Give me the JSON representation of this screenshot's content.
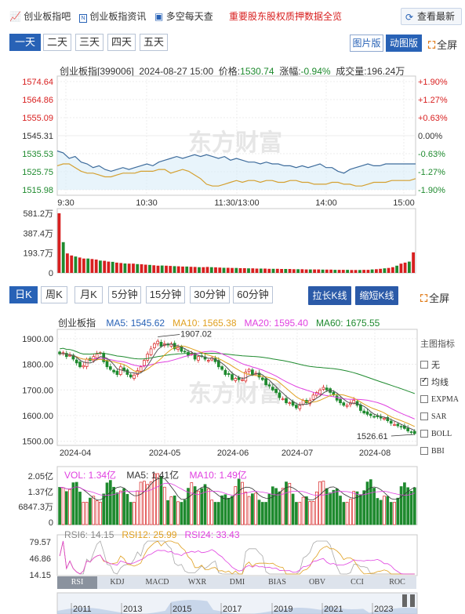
{
  "toplinks": {
    "forum": "创业板指吧",
    "news": "创业板指资讯",
    "contrarian": "多空每天查",
    "pledge": "重要股东股权质押数据全览",
    "refresh": "查看最新"
  },
  "intraday": {
    "tabs": [
      "一天",
      "二天",
      "三天",
      "四天",
      "五天"
    ],
    "view_buttons": [
      "图片版",
      "动图版"
    ],
    "fullscreen": "全屏",
    "info": "创业板指[399006]  2024-08-27 15:00  价格:",
    "price": "1530.74",
    "change_label": "涨幅:",
    "change": "-0.94%",
    "volume_label": "成交量:",
    "volume": "196.24万",
    "watermark": "东方财富"
  },
  "kline": {
    "tabs": [
      "日K",
      "周K",
      "月K",
      "5分钟",
      "15分钟",
      "30分钟",
      "60分钟"
    ],
    "stretch": "拉长K线",
    "shrink": "缩短K线",
    "fullscreen": "全屏",
    "name": "创业板指",
    "ma5": "MA5: 1545.62",
    "ma10": "MA10: 1565.38",
    "ma20": "MA20: 1595.40",
    "ma60": "MA60: 1675.55",
    "high_label": "1907.02",
    "low_label": "1526.61",
    "vol": "VOL: 1.34亿",
    "vma5": "MA5: 1.41亿",
    "vma10": "MA10: 1.49亿",
    "rsi6": "RSI6: 14.15",
    "rsi12": "RSI12: 25.99",
    "rsi24": "RSI24: 33.43",
    "indicator_title": "主图指标",
    "indicator_options": [
      "无",
      "均线",
      "EXPMA",
      "SAR",
      "BOLL",
      "BBI"
    ],
    "indicator_tabs": [
      "RSI",
      "KDJ",
      "MACD",
      "WXR",
      "DMI",
      "BIAS",
      "OBV",
      "CCI",
      "ROC"
    ],
    "timeline_years": [
      "2011",
      "2013",
      "2015",
      "2017",
      "2019",
      "2021",
      "2023"
    ]
  },
  "colors": {
    "up": "#d81f1f",
    "down": "#1e8a2e",
    "accent": "#2862b6",
    "ma5": "#555555",
    "ma10": "#e0a020",
    "ma20": "#e040e0",
    "ma60": "#1e8a2e"
  },
  "chart_data": [
    {
      "type": "line",
      "title": "创业板指 分时",
      "x_ticks": [
        "9:30",
        "10:30",
        "11:30/13:00",
        "14:00",
        "15:00"
      ],
      "y_ticks_left": [
        "1574.64",
        "1564.86",
        "1555.09",
        "1545.31",
        "1535.53",
        "1525.75",
        "1515.98"
      ],
      "y_ticks_right": [
        "+1.90%",
        "+1.27%",
        "+0.63%",
        "0.00%",
        "-0.63%",
        "-1.27%",
        "-1.90%"
      ],
      "ylim": [
        1515.98,
        1574.64
      ],
      "series": [
        {
          "name": "价格",
          "values": [
            1537,
            1536,
            1533,
            1534,
            1531,
            1530,
            1528,
            1529,
            1527,
            1526,
            1527,
            1528,
            1527,
            1528,
            1529,
            1530,
            1529,
            1531,
            1532,
            1533,
            1534,
            1533,
            1534,
            1535,
            1534,
            1535,
            1534,
            1533,
            1534,
            1532,
            1533,
            1532,
            1531,
            1531,
            1530,
            1531,
            1530,
            1530,
            1529,
            1529,
            1528,
            1529,
            1528,
            1529,
            1530,
            1528,
            1528,
            1526,
            1525,
            1527,
            1528,
            1529,
            1530,
            1529,
            1529,
            1530,
            1530,
            1530,
            1530,
            1530,
            1530
          ]
        },
        {
          "name": "均价",
          "values": [
            1529,
            1530,
            1530,
            1528,
            1526,
            1525,
            1525,
            1524,
            1523,
            1523,
            1524,
            1525,
            1525,
            1525,
            1526,
            1526,
            1526,
            1527,
            1527,
            1525,
            1526,
            1527,
            1526,
            1524,
            1522,
            1519,
            1518,
            1518,
            1519,
            1520,
            1521,
            1520,
            1521,
            1521,
            1520,
            1521,
            1521,
            1520,
            1520,
            1521,
            1521,
            1520,
            1520,
            1519,
            1519,
            1519,
            1520,
            1520,
            1519,
            1519,
            1518,
            1518,
            1519,
            1520,
            1520,
            1520,
            1521,
            1521,
            1521,
            1521,
            1522
          ]
        }
      ]
    },
    {
      "type": "bar",
      "title": "分时成交量",
      "y_ticks": [
        "581.2万",
        "387.4万",
        "193.7万",
        "0"
      ],
      "ylim": [
        0,
        581.2
      ],
      "unit": "万",
      "values": [
        581,
        300,
        190,
        170,
        160,
        150,
        140,
        140,
        135,
        130,
        120,
        118,
        110,
        108,
        100,
        96,
        92,
        90,
        90,
        86,
        84,
        80,
        78,
        74,
        70,
        72,
        70,
        68,
        66,
        64,
        62,
        62,
        60,
        58,
        56,
        56,
        58,
        56,
        54,
        52,
        50,
        50,
        48,
        48,
        46,
        46,
        44,
        44,
        42,
        42,
        42,
        40,
        40,
        40,
        38,
        38,
        38,
        36,
        36,
        36,
        34,
        34,
        34,
        34,
        32,
        32,
        32,
        30,
        30,
        30,
        30,
        28,
        28,
        28,
        30,
        30,
        34,
        36,
        40,
        44,
        48,
        56,
        70,
        90,
        100,
        110,
        200
      ]
    },
    {
      "type": "candlestick",
      "title": "创业板指 日K",
      "x_ticks": [
        "2024-04",
        "2024-05",
        "2024-06",
        "2024-07",
        "2024-08"
      ],
      "y_ticks": [
        "1900.00",
        "1800.00",
        "1700.00",
        "1600.00",
        "1500.00"
      ],
      "ylim": [
        1490,
        1930
      ],
      "high": 1907.02,
      "low": 1526.61,
      "close": [
        1840,
        1845,
        1830,
        1835,
        1820,
        1805,
        1790,
        1795,
        1820,
        1815,
        1830,
        1840,
        1845,
        1810,
        1790,
        1780,
        1770,
        1760,
        1790,
        1775,
        1760,
        1750,
        1758,
        1775,
        1790,
        1815,
        1840,
        1860,
        1880,
        1890,
        1870,
        1880,
        1875,
        1880,
        1860,
        1865,
        1850,
        1850,
        1835,
        1840,
        1820,
        1830,
        1830,
        1820,
        1815,
        1825,
        1810,
        1790,
        1780,
        1760,
        1760,
        1740,
        1745,
        1740,
        1740,
        1770,
        1780,
        1760,
        1765,
        1750,
        1740,
        1720,
        1715,
        1700,
        1690,
        1670,
        1665,
        1650,
        1650,
        1640,
        1630,
        1640,
        1660,
        1650,
        1660,
        1680,
        1690,
        1700,
        1710,
        1700,
        1690,
        1680,
        1660,
        1650,
        1640,
        1640,
        1650,
        1660,
        1640,
        1620,
        1610,
        1605,
        1600,
        1595,
        1595,
        1590,
        1590,
        1580,
        1570,
        1565,
        1560,
        1555,
        1550,
        1540,
        1535,
        1530
      ],
      "series": [
        {
          "name": "MA5",
          "value": 1545.62
        },
        {
          "name": "MA10",
          "value": 1565.38
        },
        {
          "name": "MA20",
          "value": 1595.4
        },
        {
          "name": "MA60",
          "value": 1675.55
        }
      ]
    },
    {
      "type": "bar",
      "title": "日K成交量",
      "y_ticks": [
        "2.05亿",
        "1.37亿",
        "6847.3万",
        "0"
      ],
      "ylim": [
        0,
        2.05
      ],
      "unit": "亿"
    },
    {
      "type": "line",
      "title": "RSI",
      "y_ticks": [
        "79.57",
        "46.86",
        "14.15"
      ],
      "ylim": [
        14.15,
        79.57
      ],
      "series": [
        {
          "name": "RSI6",
          "last": 14.15
        },
        {
          "name": "RSI12",
          "last": 25.99
        },
        {
          "name": "RSI24",
          "last": 33.43
        }
      ]
    }
  ]
}
